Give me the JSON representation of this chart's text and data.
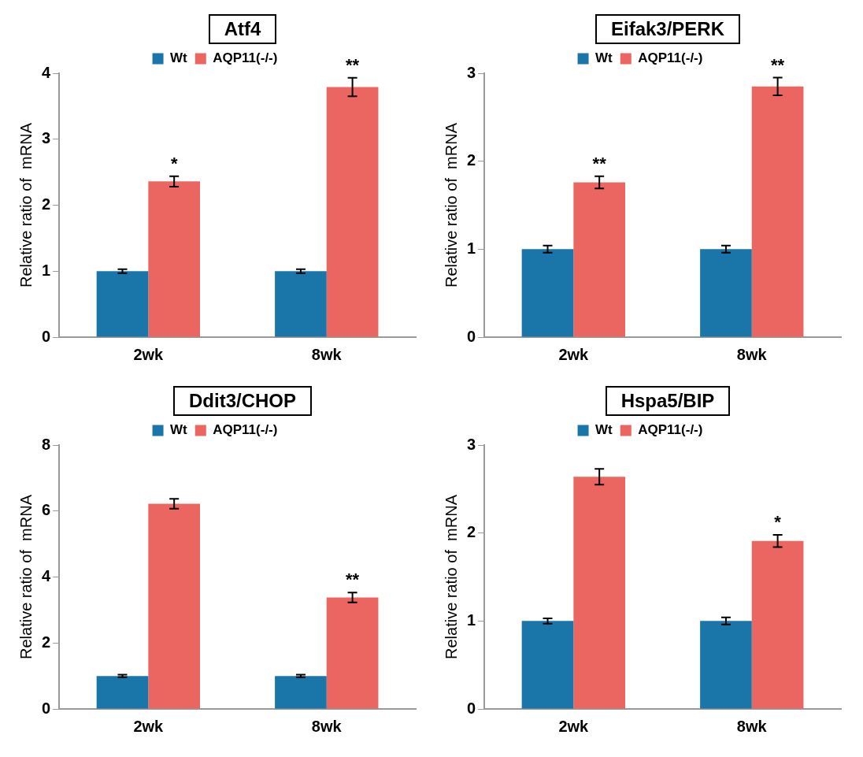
{
  "chart_data": [
    {
      "type": "bar",
      "title": "Atf4",
      "ylabel": "Relative ratio of  mRNA",
      "categories": [
        "2wk",
        "8wk"
      ],
      "series": [
        {
          "name": "Wt",
          "color": "#1a75a8",
          "values": [
            1,
            1
          ],
          "errors": [
            0.03,
            0.03
          ]
        },
        {
          "name": "AQP11(-/-)",
          "color": "#eb6660",
          "values": [
            2.36,
            3.79
          ],
          "errors": [
            0.08,
            0.14
          ]
        }
      ],
      "ylim": [
        0,
        4
      ],
      "yticks": [
        0,
        1,
        2,
        3,
        4
      ],
      "legend": "top",
      "grid": false,
      "annotations": [
        {
          "text": "*",
          "x": "2wk",
          "y": 2.36
        },
        {
          "text": "**",
          "x": "8wk",
          "y": 3.79
        }
      ]
    },
    {
      "type": "bar",
      "title": "Eifak3/PERK",
      "ylabel": "Relative ratio of  mRNA",
      "categories": [
        "2wk",
        "8wk"
      ],
      "series": [
        {
          "name": "Wt",
          "color": "#1a75a8",
          "values": [
            1,
            1
          ],
          "errors": [
            0.04,
            0.04
          ]
        },
        {
          "name": "AQP11(-/-)",
          "color": "#eb6660",
          "values": [
            1.76,
            2.85
          ],
          "errors": [
            0.07,
            0.1
          ]
        }
      ],
      "ylim": [
        0,
        3
      ],
      "yticks": [
        0,
        1,
        2,
        3
      ],
      "legend": "top",
      "grid": false,
      "annotations": [
        {
          "text": "**",
          "x": "2wk",
          "y": 1.76
        },
        {
          "text": "**",
          "x": "8wk",
          "y": 2.85
        }
      ]
    },
    {
      "type": "bar",
      "title": "Ddit3/CHOP",
      "ylabel": "Relative ratio of  mRNA",
      "categories": [
        "2wk",
        "8wk"
      ],
      "series": [
        {
          "name": "Wt",
          "color": "#1a75a8",
          "values": [
            1,
            1
          ],
          "errors": [
            0.04,
            0.04
          ]
        },
        {
          "name": "AQP11(-/-)",
          "color": "#eb6660",
          "values": [
            6.22,
            3.38
          ],
          "errors": [
            0.15,
            0.15
          ]
        }
      ],
      "ylim": [
        0,
        8
      ],
      "yticks": [
        0,
        2,
        4,
        6,
        8
      ],
      "legend": "top",
      "grid": false,
      "annotations": [
        {
          "text": "**",
          "x": "8wk",
          "y": 3.38
        }
      ]
    },
    {
      "type": "bar",
      "title": "Hspa5/BIP",
      "ylabel": "Relative ratio of  mRNA",
      "categories": [
        "2wk",
        "8wk"
      ],
      "series": [
        {
          "name": "Wt",
          "color": "#1a75a8",
          "values": [
            1,
            1
          ],
          "errors": [
            0.03,
            0.04
          ]
        },
        {
          "name": "AQP11(-/-)",
          "color": "#eb6660",
          "values": [
            2.64,
            1.91
          ],
          "errors": [
            0.09,
            0.07
          ]
        }
      ],
      "ylim": [
        0,
        3
      ],
      "yticks": [
        0,
        1,
        2,
        3
      ],
      "legend": "top",
      "grid": false,
      "annotations": [
        {
          "text": "*",
          "x": "8wk",
          "y": 1.91
        }
      ]
    }
  ]
}
